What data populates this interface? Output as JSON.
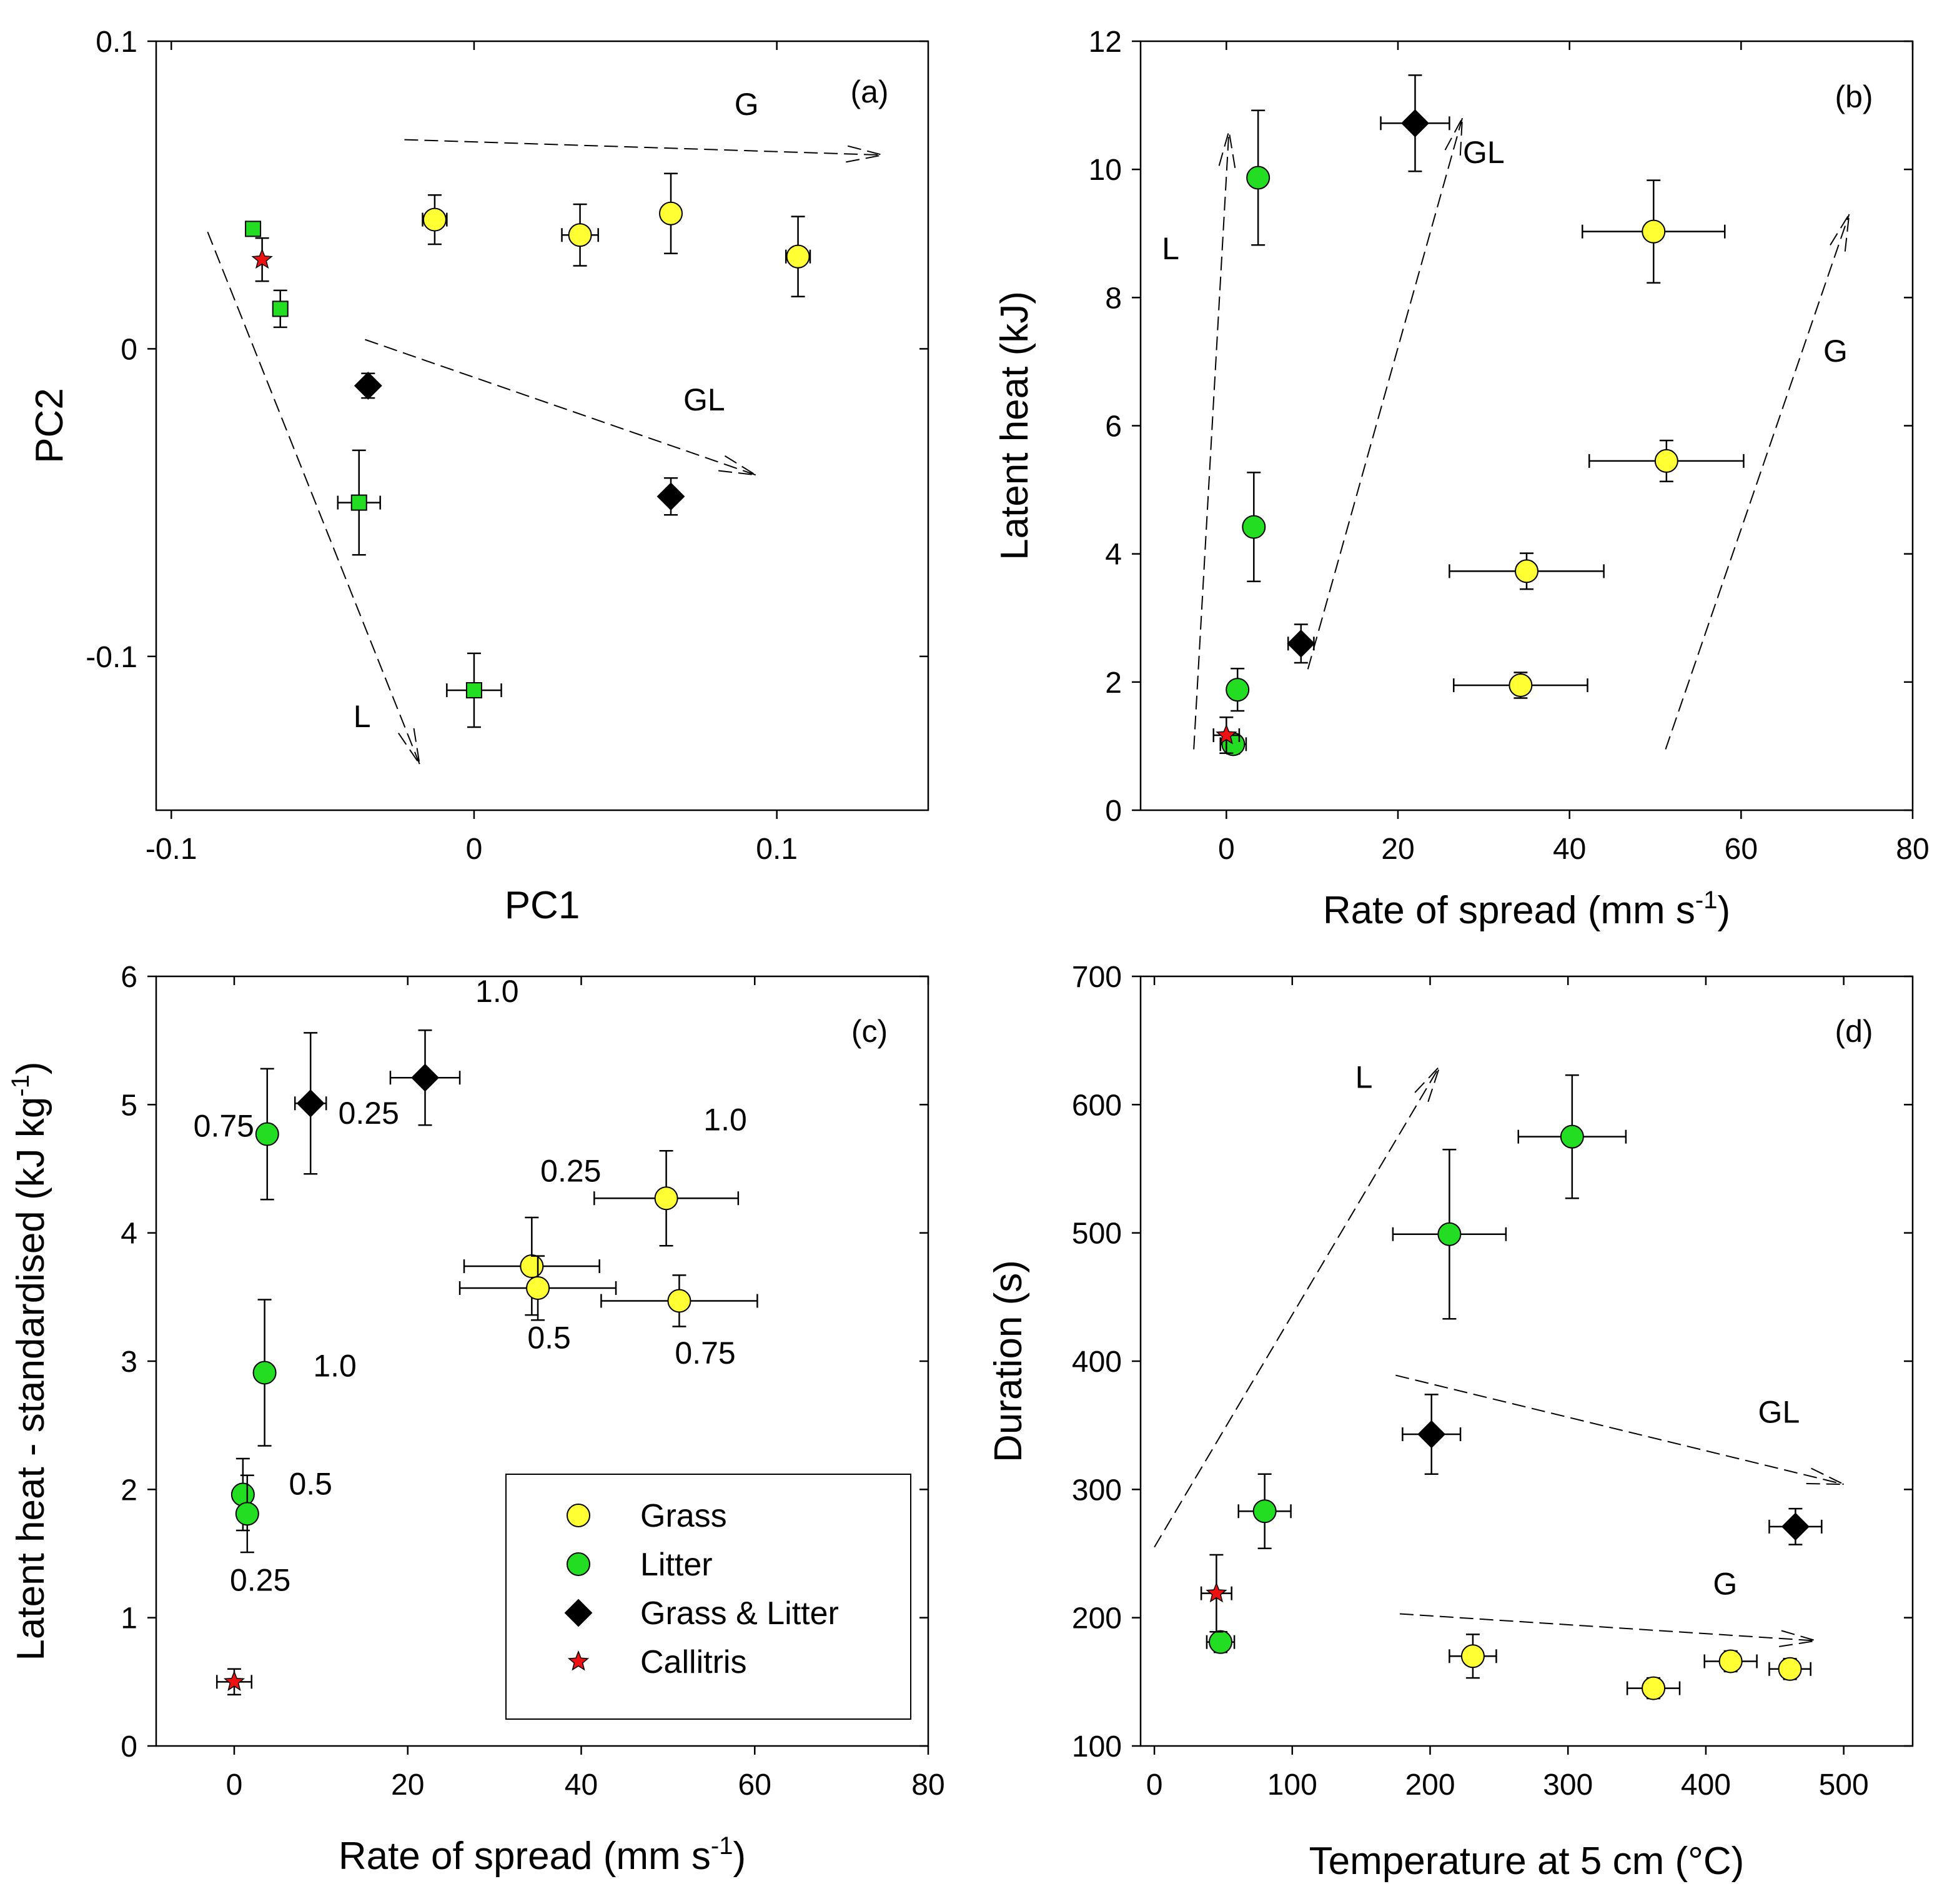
{
  "colors": {
    "grass": "#ffff33",
    "litter": "#22dd22",
    "grass_litter": "#000000",
    "callitris": "#ee1111"
  },
  "chart_data": [
    {
      "panel": "(a)",
      "type": "scatter",
      "xlabel": "PC1",
      "ylabel": "PC2",
      "xlim": [
        -0.105,
        0.15
      ],
      "ylim": [
        -0.15,
        0.1
      ],
      "xticks": [
        -0.1,
        0,
        0.1
      ],
      "yticks": [
        -0.1,
        0,
        0.1
      ],
      "xtick_labels": [
        "-0.1",
        "0",
        "0.1"
      ],
      "ytick_labels": [
        "-0.1",
        "0",
        "0.1"
      ],
      "points": [
        {
          "group": "litter",
          "marker": "square",
          "x": -0.073,
          "y": 0.039,
          "xerr": 0,
          "yerr": 0
        },
        {
          "group": "callitris",
          "marker": "star",
          "x": -0.07,
          "y": 0.029,
          "xerr": 0,
          "yerr": 0.007
        },
        {
          "group": "litter",
          "marker": "square",
          "x": -0.064,
          "y": 0.013,
          "xerr": 0.002,
          "yerr": 0.006
        },
        {
          "group": "litter",
          "marker": "square",
          "x": -0.038,
          "y": -0.05,
          "xerr": 0.007,
          "yerr": 0.017
        },
        {
          "group": "litter",
          "marker": "square",
          "x": 0.0,
          "y": -0.111,
          "xerr": 0.009,
          "yerr": 0.012
        },
        {
          "group": "grass_litter",
          "marker": "diamond",
          "x": -0.035,
          "y": -0.012,
          "xerr": 0.002,
          "yerr": 0.004
        },
        {
          "group": "grass_litter",
          "marker": "diamond",
          "x": 0.065,
          "y": -0.048,
          "xerr": 0.002,
          "yerr": 0.006
        },
        {
          "group": "grass",
          "marker": "circle",
          "x": -0.013,
          "y": 0.042,
          "xerr": 0.004,
          "yerr": 0.008
        },
        {
          "group": "grass",
          "marker": "circle",
          "x": 0.035,
          "y": 0.037,
          "xerr": 0.006,
          "yerr": 0.01
        },
        {
          "group": "grass",
          "marker": "circle",
          "x": 0.065,
          "y": 0.044,
          "xerr": 0.003,
          "yerr": 0.013
        },
        {
          "group": "grass",
          "marker": "circle",
          "x": 0.107,
          "y": 0.03,
          "xerr": 0.004,
          "yerr": 0.013
        }
      ],
      "arrows": [
        {
          "label": "G",
          "from": [
            -0.023,
            0.068
          ],
          "to": [
            0.135,
            0.063
          ],
          "label_at": [
            0.09,
            0.076
          ]
        },
        {
          "label": "GL",
          "from": [
            -0.036,
            0.003
          ],
          "to": [
            0.093,
            -0.041
          ],
          "label_at": [
            0.076,
            -0.02
          ]
        },
        {
          "label": "L",
          "from": [
            -0.088,
            0.038
          ],
          "to": [
            -0.018,
            -0.135
          ],
          "label_at": [
            -0.037,
            -0.123
          ]
        }
      ]
    },
    {
      "panel": "(b)",
      "type": "scatter",
      "xlabel": "Rate of spread (mm s",
      "xlabel_sup": "-1",
      "xlabel_end": ")",
      "ylabel": "Latent heat (kJ)",
      "xlim": [
        -10,
        80
      ],
      "ylim": [
        0,
        12
      ],
      "xticks": [
        0,
        20,
        40,
        60,
        80
      ],
      "yticks": [
        0,
        2,
        4,
        6,
        8,
        10,
        12
      ],
      "xtick_labels": [
        "0",
        "20",
        "40",
        "60",
        "80"
      ],
      "ytick_labels": [
        "0",
        "2",
        "4",
        "6",
        "8",
        "10",
        "12"
      ],
      "points": [
        {
          "group": "litter",
          "marker": "circle",
          "x": 3.7,
          "y": 9.87,
          "xerr": 0.8,
          "yerr": 1.05
        },
        {
          "group": "litter",
          "marker": "circle",
          "x": 3.2,
          "y": 4.42,
          "xerr": 1.0,
          "yerr": 0.85
        },
        {
          "group": "litter",
          "marker": "circle",
          "x": 1.3,
          "y": 1.88,
          "xerr": 1.0,
          "yerr": 0.33
        },
        {
          "group": "litter",
          "marker": "circle",
          "x": 0.8,
          "y": 1.03,
          "xerr": 1.5,
          "yerr": 0.15
        },
        {
          "group": "callitris",
          "marker": "star",
          "x": 0.0,
          "y": 1.17,
          "xerr": 1.5,
          "yerr": 0.28
        },
        {
          "group": "grass_litter",
          "marker": "diamond",
          "x": 22.0,
          "y": 10.72,
          "xerr": 4.0,
          "yerr": 0.75
        },
        {
          "group": "grass_litter",
          "marker": "diamond",
          "x": 8.7,
          "y": 2.6,
          "xerr": 1.5,
          "yerr": 0.3
        },
        {
          "group": "grass",
          "marker": "circle",
          "x": 49.8,
          "y": 9.03,
          "xerr": 8.3,
          "yerr": 0.8
        },
        {
          "group": "grass",
          "marker": "circle",
          "x": 51.3,
          "y": 5.45,
          "xerr": 9.0,
          "yerr": 0.32
        },
        {
          "group": "grass",
          "marker": "circle",
          "x": 35.0,
          "y": 3.73,
          "xerr": 9.0,
          "yerr": 0.28
        },
        {
          "group": "grass",
          "marker": "circle",
          "x": 34.3,
          "y": 1.95,
          "xerr": 7.8,
          "yerr": 0.2
        }
      ],
      "arrows": [
        {
          "label": "L",
          "from": [
            -3.8,
            0.95
          ],
          "to": [
            0.3,
            10.6
          ],
          "label_at": [
            -6.5,
            8.6
          ]
        },
        {
          "label": "GL",
          "from": [
            9.5,
            2.2
          ],
          "to": [
            27.5,
            10.8
          ],
          "label_at": [
            30.0,
            10.1
          ]
        },
        {
          "label": "G",
          "from": [
            51.2,
            0.95
          ],
          "to": [
            72.6,
            9.3
          ],
          "label_at": [
            71.0,
            7.0
          ]
        }
      ]
    },
    {
      "panel": "(c)",
      "type": "scatter",
      "xlabel": "Rate of spread (mm s",
      "xlabel_sup": "-1",
      "xlabel_end": ")",
      "ylabel": "Latent heat - standardised (kJ kg",
      "ylabel_sup": "-1",
      "ylabel_end": ")",
      "xlim": [
        -9,
        80
      ],
      "ylim": [
        0,
        6
      ],
      "xticks": [
        0,
        20,
        40,
        60,
        80
      ],
      "yticks": [
        0,
        1,
        2,
        3,
        4,
        5,
        6
      ],
      "xtick_labels": [
        "0",
        "20",
        "40",
        "60",
        "80"
      ],
      "ytick_labels": [
        "0",
        "1",
        "2",
        "3",
        "4",
        "5",
        "6"
      ],
      "points": [
        {
          "group": "litter",
          "marker": "circle",
          "x": 3.8,
          "y": 4.77,
          "xerr": 1.0,
          "yerr": 0.51,
          "label": "0.75"
        },
        {
          "group": "litter",
          "marker": "circle",
          "x": 3.5,
          "y": 2.91,
          "xerr": 1.0,
          "yerr": 0.57,
          "label": "1.0"
        },
        {
          "group": "litter",
          "marker": "circle",
          "x": 1.0,
          "y": 1.96,
          "xerr": 1.0,
          "yerr": 0.28,
          "label": "0.5"
        },
        {
          "group": "litter",
          "marker": "circle",
          "x": 1.5,
          "y": 1.81,
          "xerr": 1.0,
          "yerr": 0.3,
          "label": "0.25"
        },
        {
          "group": "callitris",
          "marker": "star",
          "x": 0.0,
          "y": 0.5,
          "xerr": 2.0,
          "yerr": 0.1
        },
        {
          "group": "grass_litter",
          "marker": "diamond",
          "x": 8.8,
          "y": 5.01,
          "xerr": 1.8,
          "yerr": 0.55,
          "label": "0.25"
        },
        {
          "group": "grass_litter",
          "marker": "diamond",
          "x": 22.0,
          "y": 5.21,
          "xerr": 4.0,
          "yerr": 0.37,
          "label": "1.0"
        },
        {
          "group": "grass",
          "marker": "circle",
          "x": 49.8,
          "y": 4.27,
          "xerr": 8.3,
          "yerr": 0.37,
          "label": "1.0"
        },
        {
          "group": "grass",
          "marker": "circle",
          "x": 34.3,
          "y": 3.74,
          "xerr": 7.8,
          "yerr": 0.38,
          "label": "0.25"
        },
        {
          "group": "grass",
          "marker": "circle",
          "x": 35.0,
          "y": 3.57,
          "xerr": 9.0,
          "yerr": 0.25,
          "label": "0.5"
        },
        {
          "group": "grass",
          "marker": "circle",
          "x": 51.3,
          "y": 3.47,
          "xerr": 9.0,
          "yerr": 0.2,
          "label": "0.75"
        }
      ],
      "annotations": [
        {
          "text": "0.75",
          "at": [
            -1.2,
            4.75
          ]
        },
        {
          "text": "0.25",
          "at": [
            15.5,
            4.85
          ]
        },
        {
          "text": "1.0",
          "at": [
            30.3,
            5.8
          ]
        },
        {
          "text": "0.25",
          "at": [
            38.8,
            4.4
          ]
        },
        {
          "text": "1.0",
          "at": [
            56.6,
            4.8
          ]
        },
        {
          "text": "0.5",
          "at": [
            36.3,
            3.1
          ]
        },
        {
          "text": "0.75",
          "at": [
            54.3,
            2.98
          ]
        },
        {
          "text": "1.0",
          "at": [
            11.6,
            2.88
          ]
        },
        {
          "text": "0.5",
          "at": [
            8.8,
            1.96
          ]
        },
        {
          "text": "0.25",
          "at": [
            3.0,
            1.21
          ]
        }
      ]
    },
    {
      "panel": "(d)",
      "type": "scatter",
      "xlabel": "Temperature at 5 cm (°C)",
      "ylabel": "Duration (s)",
      "xlim": [
        -10,
        550
      ],
      "ylim": [
        100,
        700
      ],
      "xticks": [
        0,
        100,
        200,
        300,
        400,
        500
      ],
      "yticks": [
        100,
        200,
        300,
        400,
        500,
        600,
        700
      ],
      "xtick_labels": [
        "0",
        "100",
        "200",
        "300",
        "400",
        "500"
      ],
      "ytick_labels": [
        "100",
        "200",
        "300",
        "400",
        "500",
        "600",
        "700"
      ],
      "points": [
        {
          "group": "litter",
          "marker": "circle",
          "x": 303,
          "y": 575,
          "xerr": 39,
          "yerr": 48
        },
        {
          "group": "litter",
          "marker": "circle",
          "x": 214,
          "y": 499,
          "xerr": 41,
          "yerr": 66
        },
        {
          "group": "litter",
          "marker": "circle",
          "x": 80,
          "y": 283,
          "xerr": 19,
          "yerr": 29
        },
        {
          "group": "litter",
          "marker": "circle",
          "x": 48,
          "y": 181,
          "xerr": 10,
          "yerr": 8
        },
        {
          "group": "callitris",
          "marker": "star",
          "x": 45,
          "y": 219,
          "xerr": 11,
          "yerr": 30
        },
        {
          "group": "grass_litter",
          "marker": "diamond",
          "x": 201,
          "y": 343,
          "xerr": 21,
          "yerr": 31
        },
        {
          "group": "grass_litter",
          "marker": "diamond",
          "x": 465,
          "y": 271,
          "xerr": 19,
          "yerr": 14
        },
        {
          "group": "grass",
          "marker": "circle",
          "x": 231,
          "y": 170,
          "xerr": 17,
          "yerr": 17
        },
        {
          "group": "grass",
          "marker": "circle",
          "x": 362,
          "y": 145,
          "xerr": 19,
          "yerr": 8
        },
        {
          "group": "grass",
          "marker": "circle",
          "x": 418,
          "y": 166,
          "xerr": 19,
          "yerr": 8
        },
        {
          "group": "grass",
          "marker": "circle",
          "x": 461,
          "y": 160,
          "xerr": 15,
          "yerr": 8
        }
      ],
      "arrows": [
        {
          "label": "L",
          "from": [
            0,
            255
          ],
          "to": [
            207,
            630
          ],
          "label_at": [
            152,
            613
          ]
        },
        {
          "label": "GL",
          "from": [
            175,
            389
          ],
          "to": [
            500,
            304
          ],
          "label_at": [
            453,
            352
          ]
        },
        {
          "label": "G",
          "from": [
            178,
            203
          ],
          "to": [
            480,
            182
          ],
          "label_at": [
            414,
            218
          ]
        }
      ]
    }
  ],
  "legend": {
    "entries": [
      {
        "label": "Grass",
        "group": "grass",
        "marker": "circle"
      },
      {
        "label": "Litter",
        "group": "litter",
        "marker": "circle"
      },
      {
        "label": "Grass & Litter",
        "group": "grass_litter",
        "marker": "diamond"
      },
      {
        "label": "Callitris",
        "group": "callitris",
        "marker": "star"
      }
    ]
  }
}
